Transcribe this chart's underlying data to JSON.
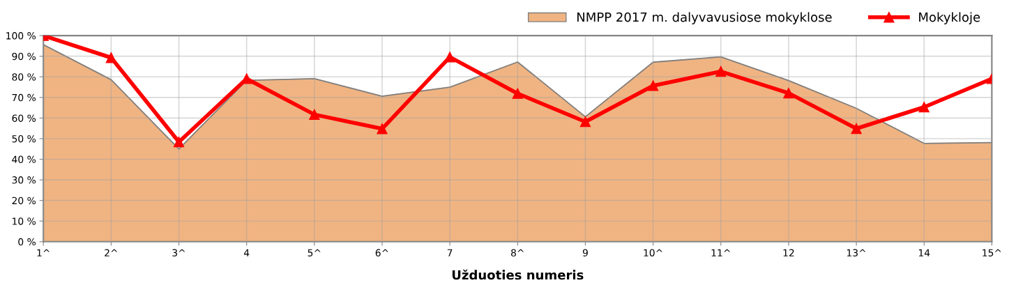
{
  "chart_data": {
    "type": "line",
    "xlabel": "Užduoties numeris",
    "categories": [
      "1^",
      "2^",
      "3^",
      "4",
      "5^",
      "6^",
      "7",
      "8^",
      "9",
      "10^",
      "11^",
      "12",
      "13^",
      "14",
      "15^"
    ],
    "series": [
      {
        "name": "NMPP 2017 m. dalyvavusiose mokyklose",
        "type": "area",
        "color": "#f0b482",
        "values": [
          95.6,
          78.6,
          45.0,
          78.3,
          79.1,
          70.6,
          75.0,
          87.2,
          60.6,
          87.1,
          89.7,
          78.2,
          64.7,
          47.7,
          48.1
        ]
      },
      {
        "name": "Mokykloje",
        "color": "#ff0000",
        "marker": "triangle",
        "values": [
          100,
          89.3,
          48.4,
          79.1,
          61.7,
          54.8,
          89.6,
          71.9,
          58.2,
          75.7,
          82.6,
          72.1,
          54.9,
          65.3,
          79.1
        ]
      }
    ],
    "ylim": [
      0,
      100
    ],
    "yticks": [
      {
        "value": 0,
        "label": "0 %"
      },
      {
        "value": 10,
        "label": "10 %"
      },
      {
        "value": 20,
        "label": "20 %"
      },
      {
        "value": 30,
        "label": "30 %"
      },
      {
        "value": 40,
        "label": "40 %"
      },
      {
        "value": 50,
        "label": "50 %"
      },
      {
        "value": 60,
        "label": "60 %"
      },
      {
        "value": 70,
        "label": "70 %"
      },
      {
        "value": 80,
        "label": "80 %"
      },
      {
        "value": 90,
        "label": "90 %"
      },
      {
        "value": 100,
        "label": "100 %"
      }
    ],
    "grid": true,
    "legend": "top right"
  }
}
